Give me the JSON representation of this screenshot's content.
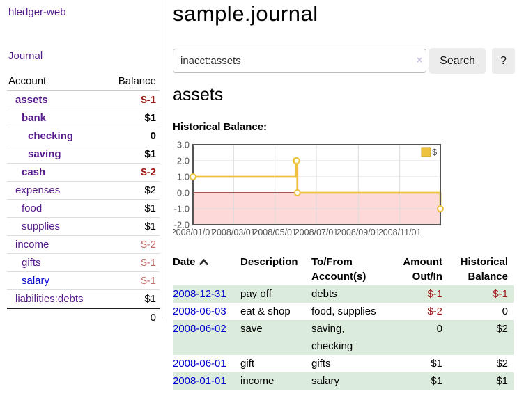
{
  "app": {
    "brand": "hledger-web"
  },
  "sidebar": {
    "journal_link": "Journal",
    "accounts_table": {
      "account_header": "Account",
      "balance_header": "Balance",
      "rows": [
        {
          "name": "assets",
          "balance": "$-1",
          "level": 1,
          "in_scope": true,
          "balance_tone": "negative"
        },
        {
          "name": "bank",
          "balance": "$1",
          "level": 2,
          "in_scope": true,
          "balance_tone": "normal"
        },
        {
          "name": "checking",
          "balance": "0",
          "level": 3,
          "in_scope": true,
          "balance_tone": "normal"
        },
        {
          "name": "saving",
          "balance": "$1",
          "level": 3,
          "in_scope": true,
          "balance_tone": "normal"
        },
        {
          "name": "cash",
          "balance": "$-2",
          "level": 2,
          "in_scope": true,
          "balance_tone": "negative"
        },
        {
          "name": "expenses",
          "balance": "$2",
          "level": 1,
          "in_scope": false,
          "balance_tone": "normal"
        },
        {
          "name": "food",
          "balance": "$1",
          "level": 2,
          "in_scope": false,
          "balance_tone": "normal"
        },
        {
          "name": "supplies",
          "balance": "$1",
          "level": 2,
          "in_scope": false,
          "balance_tone": "normal"
        },
        {
          "name": "income",
          "balance": "$-2",
          "level": 1,
          "in_scope": false,
          "balance_tone": "negative-soft"
        },
        {
          "name": "gifts",
          "balance": "$-1",
          "level": 2,
          "in_scope": false,
          "balance_tone": "negative-soft"
        },
        {
          "name": "salary",
          "balance": "$-1",
          "level": 2,
          "in_scope": false,
          "balance_tone": "negative-soft",
          "link_tone": "unvisited"
        },
        {
          "name": "liabilities:debts",
          "balance": "$1",
          "level": 1,
          "in_scope": false,
          "balance_tone": "normal"
        }
      ],
      "total": "0"
    }
  },
  "main": {
    "title": "sample.journal",
    "search": {
      "value": "inacct:assets",
      "clear_icon": "×",
      "search_button": "Search",
      "help_button": "?"
    },
    "account_heading": "assets",
    "chart_heading": "Historical Balance:",
    "register_table": {
      "headers": {
        "date": "Date",
        "description": "Description",
        "accounts": "To/From Account(s)",
        "amount": "Amount Out/In",
        "balance": "Historical Balance"
      },
      "sort": {
        "column": "Date",
        "direction": "ascending"
      },
      "rows": [
        {
          "date": "2008-12-31",
          "description": "pay off",
          "accounts": "debts",
          "amount": "$-1",
          "amount_negative": true,
          "balance": "$-1",
          "balance_negative": true
        },
        {
          "date": "2008-06-03",
          "description": "eat & shop",
          "accounts": "food, supplies",
          "amount": "$-2",
          "amount_negative": true,
          "balance": "0",
          "balance_negative": false
        },
        {
          "date": "2008-06-02",
          "description": "save",
          "accounts": "saving, checking",
          "amount": "0",
          "amount_negative": false,
          "balance": "$2",
          "balance_negative": false
        },
        {
          "date": "2008-06-01",
          "description": "gift",
          "accounts": "gifts",
          "amount": "$1",
          "amount_negative": false,
          "balance": "$2",
          "balance_negative": false
        },
        {
          "date": "2008-01-01",
          "description": "income",
          "accounts": "salary",
          "amount": "$1",
          "amount_negative": false,
          "balance": "$1",
          "balance_negative": false
        }
      ]
    }
  },
  "colors": {
    "link_visited": "#551a8b",
    "link_unvisited": "#0000cc",
    "negative": "#9d1717",
    "negative_soft": "#c06a6a",
    "row_stripe": "#dcecdc",
    "chart_border": "#545454",
    "chart_grid": "#dcdcdc"
  },
  "chart_data": {
    "type": "line",
    "step": true,
    "title": "Historical Balance",
    "x_range": [
      "2008-01-01",
      "2008-12-31"
    ],
    "ylim": [
      -2,
      3
    ],
    "y_ticks": [
      "3.0",
      "2.0",
      "1.0",
      "0.0",
      "-1.0",
      "-2.0"
    ],
    "x_ticks": [
      "2008/01/01",
      "2008/03/01",
      "2008/05/01",
      "2008/07/01",
      "2008/09/01",
      "2008/11/01"
    ],
    "grid": true,
    "legend_position": "top-right",
    "negative_region_color": "#fdd9d9",
    "zero_line_color": "#8b1a1a",
    "series": [
      {
        "name": "$",
        "color": "#edc240",
        "points": [
          {
            "date": "2008-01-01",
            "value": 1
          },
          {
            "date": "2008-06-01",
            "value": 2
          },
          {
            "date": "2008-06-02",
            "value": 2
          },
          {
            "date": "2008-06-03",
            "value": 0
          },
          {
            "date": "2008-12-31",
            "value": -1
          }
        ]
      }
    ]
  }
}
